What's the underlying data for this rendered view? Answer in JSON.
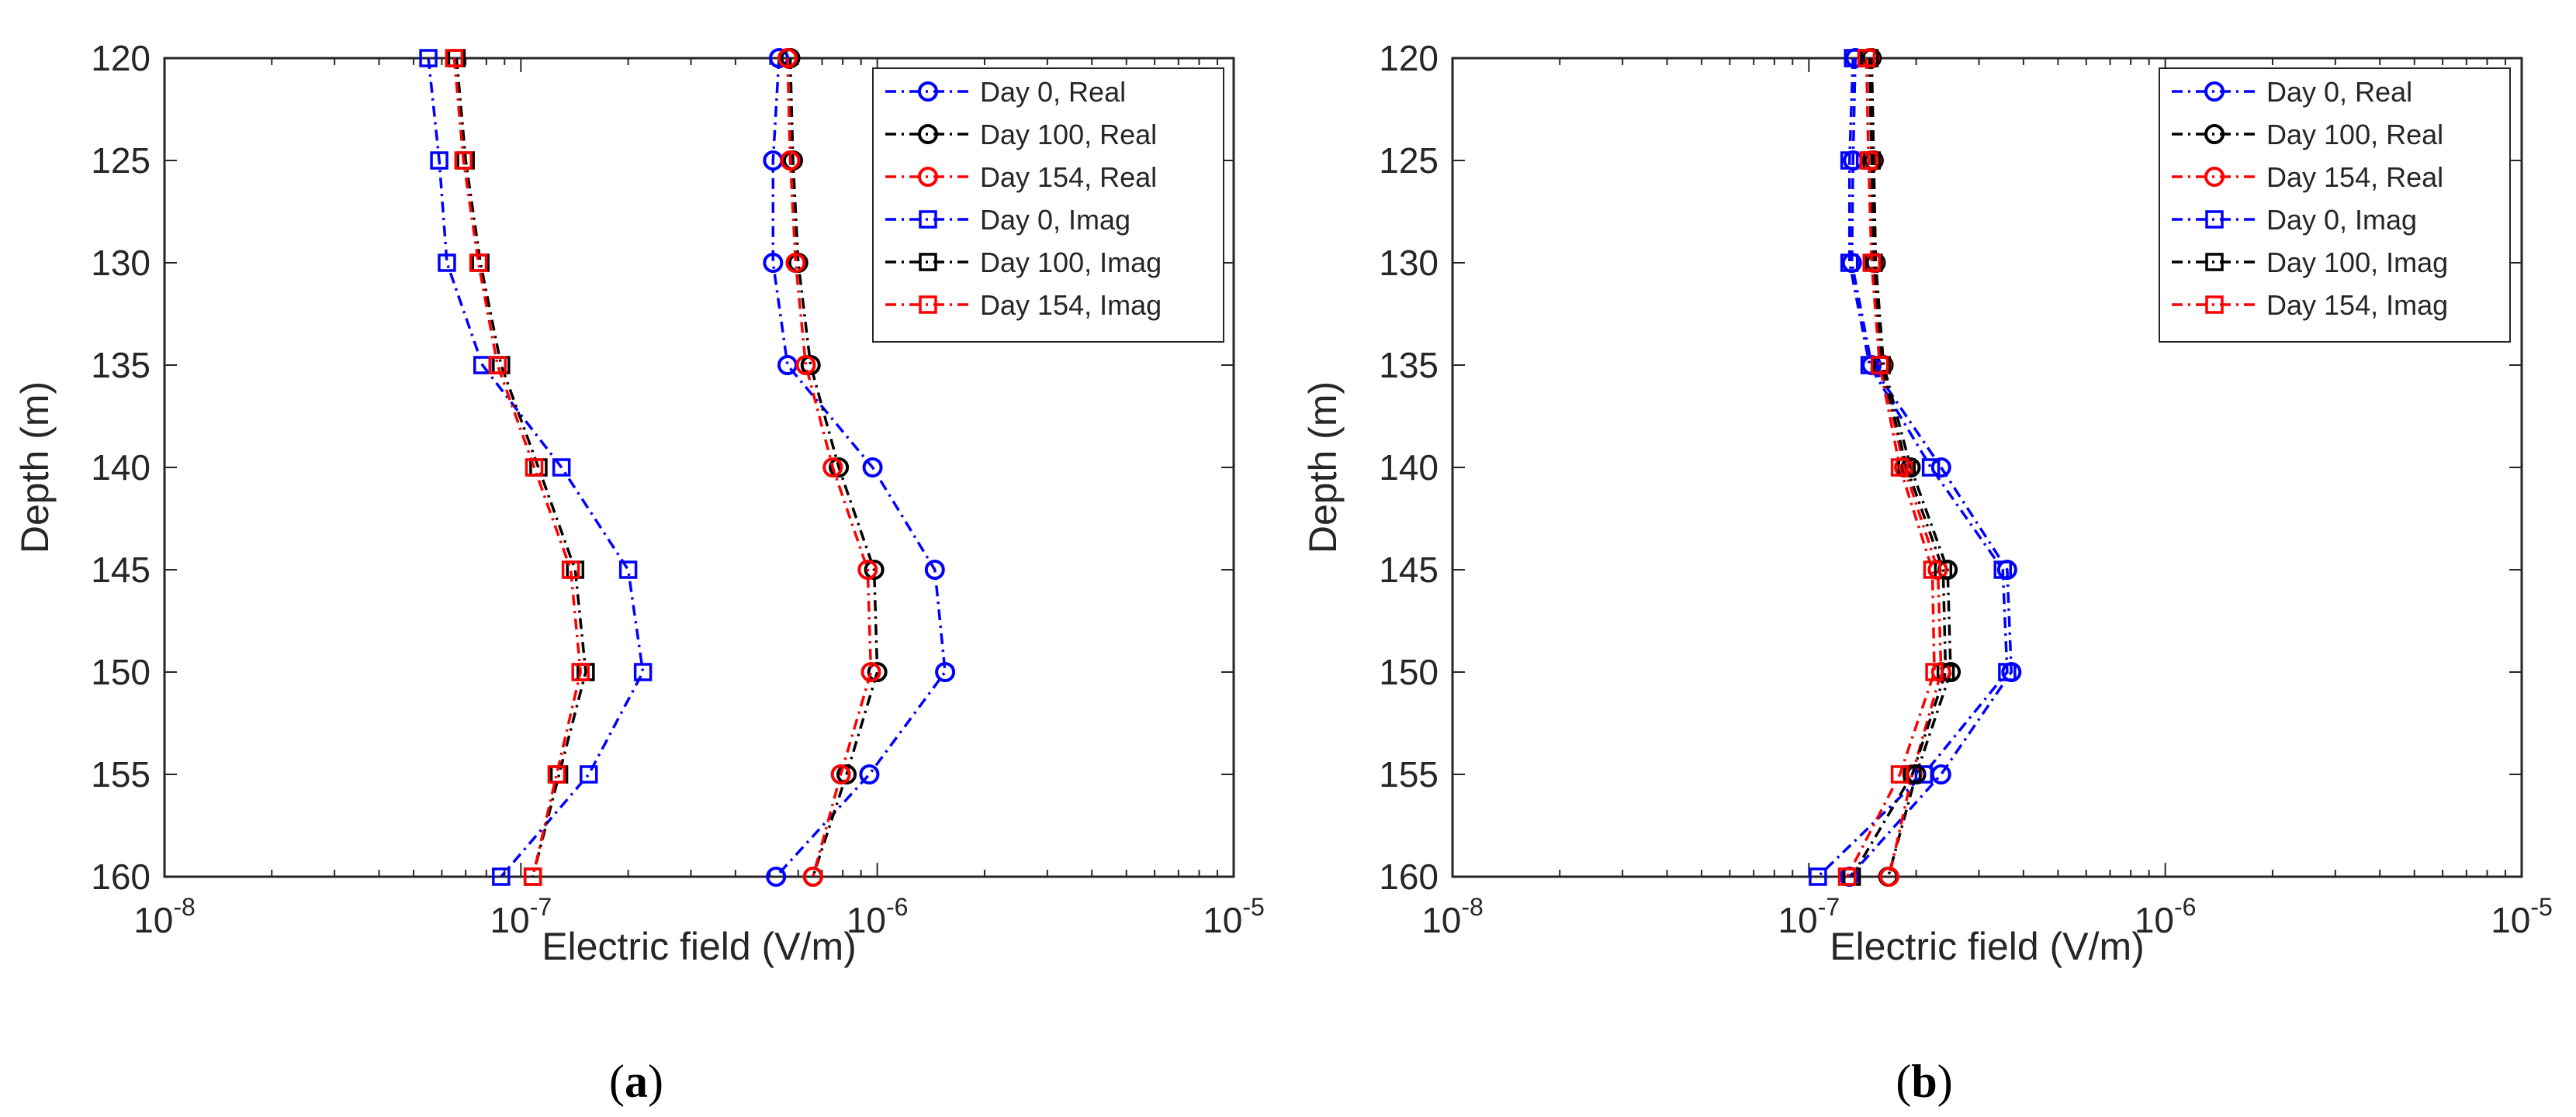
{
  "chart_data": [
    {
      "panel_id": "a",
      "caption_open": "(",
      "caption_letter": "a",
      "caption_close": ")",
      "type": "line",
      "xscale": "log",
      "xlabel": "Electric field (V/m)",
      "ylabel": "Depth (m)",
      "xlim": [
        1e-08,
        1e-05
      ],
      "ylim": [
        120,
        160
      ],
      "y_reversed": true,
      "yticks": [
        "120",
        "125",
        "130",
        "135",
        "140",
        "145",
        "150",
        "155",
        "160"
      ],
      "xtick_base": "10",
      "xticks": [
        {
          "base": "10",
          "exp": "-8",
          "value": 1e-08
        },
        {
          "base": "10",
          "exp": "-7",
          "value": 1e-07
        },
        {
          "base": "10",
          "exp": "-6",
          "value": 1e-06
        },
        {
          "base": "10",
          "exp": "-5",
          "value": 1e-05
        }
      ],
      "legend_position": "top-right",
      "depths": [
        120,
        125,
        130,
        135,
        140,
        145,
        150,
        155,
        160
      ],
      "series": [
        {
          "name": "Day 0, Real",
          "color": "#0000ff",
          "marker": "circle",
          "values": [
            5.3e-07,
            5.1e-07,
            5.1e-07,
            5.6e-07,
            9.7e-07,
            1.45e-06,
            1.55e-06,
            9.5e-07,
            5.2e-07
          ]
        },
        {
          "name": "Day 100, Real",
          "color": "#000000",
          "marker": "circle",
          "values": [
            5.7e-07,
            5.8e-07,
            6e-07,
            6.5e-07,
            7.8e-07,
            9.8e-07,
            1e-06,
            8.2e-07,
            6.6e-07
          ]
        },
        {
          "name": "Day 154, Real",
          "color": "#ff0000",
          "marker": "circle",
          "values": [
            5.6e-07,
            5.7e-07,
            5.9e-07,
            6.3e-07,
            7.5e-07,
            9.4e-07,
            9.6e-07,
            7.9e-07,
            6.6e-07
          ]
        },
        {
          "name": "Day 0, Imag",
          "color": "#0000ff",
          "marker": "square",
          "values": [
            5.5e-08,
            5.9e-08,
            6.2e-08,
            7.8e-08,
            1.3e-07,
            2e-07,
            2.2e-07,
            1.55e-07,
            8.8e-08
          ]
        },
        {
          "name": "Day 100, Imag",
          "color": "#000000",
          "marker": "square",
          "values": [
            6.6e-08,
            7e-08,
            7.7e-08,
            8.8e-08,
            1.12e-07,
            1.42e-07,
            1.52e-07,
            1.28e-07,
            1.08e-07
          ]
        },
        {
          "name": "Day 154, Imag",
          "color": "#ff0000",
          "marker": "square",
          "values": [
            6.5e-08,
            6.9e-08,
            7.6e-08,
            8.6e-08,
            1.09e-07,
            1.38e-07,
            1.47e-07,
            1.26e-07,
            1.08e-07
          ]
        }
      ]
    },
    {
      "panel_id": "b",
      "caption_open": "(",
      "caption_letter": "b",
      "caption_close": ")",
      "type": "line",
      "xscale": "log",
      "xlabel": "Electric field (V/m)",
      "ylabel": "Depth (m)",
      "xlim": [
        1e-08,
        1e-05
      ],
      "ylim": [
        120,
        160
      ],
      "y_reversed": true,
      "yticks": [
        "120",
        "125",
        "130",
        "135",
        "140",
        "145",
        "150",
        "155",
        "160"
      ],
      "xtick_base": "10",
      "xticks": [
        {
          "base": "10",
          "exp": "-8",
          "value": 1e-08
        },
        {
          "base": "10",
          "exp": "-7",
          "value": 1e-07
        },
        {
          "base": "10",
          "exp": "-6",
          "value": 1e-06
        },
        {
          "base": "10",
          "exp": "-5",
          "value": 1e-05
        }
      ],
      "legend_position": "top-right",
      "depths": [
        120,
        125,
        130,
        135,
        140,
        145,
        150,
        155,
        160
      ],
      "series": [
        {
          "name": "Day 0, Real",
          "color": "#0000ff",
          "marker": "circle",
          "values": [
            1.35e-07,
            1.33e-07,
            1.32e-07,
            1.5e-07,
            2.35e-07,
            3.6e-07,
            3.7e-07,
            2.35e-07,
            1.3e-07
          ]
        },
        {
          "name": "Day 100, Real",
          "color": "#000000",
          "marker": "circle",
          "values": [
            1.5e-07,
            1.52e-07,
            1.54e-07,
            1.62e-07,
            1.93e-07,
            2.45e-07,
            2.5e-07,
            2e-07,
            1.67e-07
          ]
        },
        {
          "name": "Day 154, Real",
          "color": "#ff0000",
          "marker": "circle",
          "values": [
            1.48e-07,
            1.5e-07,
            1.52e-07,
            1.6e-07,
            1.85e-07,
            2.3e-07,
            2.35e-07,
            1.95e-07,
            1.68e-07
          ]
        },
        {
          "name": "Day 0, Imag",
          "color": "#0000ff",
          "marker": "square",
          "values": [
            1.33e-07,
            1.3e-07,
            1.3e-07,
            1.48e-07,
            2.2e-07,
            3.5e-07,
            3.6e-07,
            2.1e-07,
            1.06e-07
          ]
        },
        {
          "name": "Day 100, Imag",
          "color": "#000000",
          "marker": "square",
          "values": [
            1.48e-07,
            1.5e-07,
            1.52e-07,
            1.6e-07,
            1.88e-07,
            2.38e-07,
            2.42e-07,
            1.95e-07,
            1.32e-07
          ]
        },
        {
          "name": "Day 154, Imag",
          "color": "#ff0000",
          "marker": "square",
          "values": [
            1.45e-07,
            1.47e-07,
            1.5e-07,
            1.58e-07,
            1.8e-07,
            2.22e-07,
            2.25e-07,
            1.8e-07,
            1.28e-07
          ]
        }
      ]
    }
  ]
}
